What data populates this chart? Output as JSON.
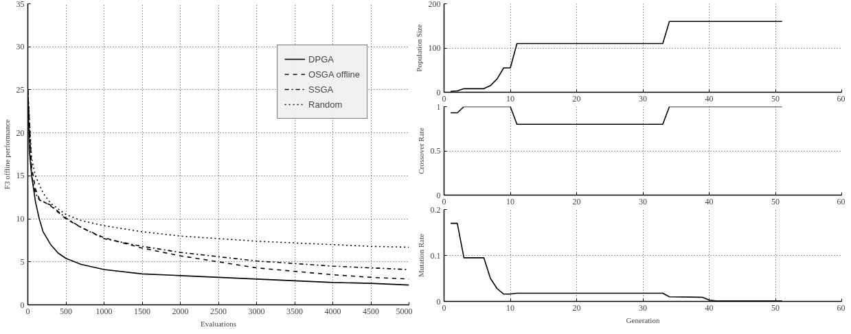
{
  "chart_data": [
    {
      "type": "line",
      "xlabel": "Evaluations",
      "ylabel": "F3 offline performance",
      "xlim": [
        0,
        5000
      ],
      "ylim": [
        0,
        35
      ],
      "xticks": [
        0,
        500,
        1000,
        1500,
        2000,
        2500,
        3000,
        3500,
        4000,
        4500,
        5000
      ],
      "yticks": [
        0,
        5,
        10,
        15,
        20,
        25,
        30,
        35
      ],
      "grid": true,
      "legend": "top right",
      "series": [
        {
          "name": "DPGA",
          "color": "#000000",
          "line_style": "solid",
          "x": [
            0,
            20,
            50,
            100,
            150,
            200,
            300,
            400,
            500,
            700,
            1000,
            1500,
            2000,
            2500,
            3000,
            3500,
            4000,
            4500,
            5000
          ],
          "values": [
            25,
            18,
            15,
            12,
            10,
            8.5,
            7,
            6,
            5.4,
            4.7,
            4.1,
            3.6,
            3.4,
            3.2,
            3.0,
            2.8,
            2.6,
            2.5,
            2.3
          ]
        },
        {
          "name": "OSGA offline",
          "color": "#000000",
          "line_style": "dashed",
          "x": [
            0,
            50,
            100,
            150,
            300,
            500,
            700,
            1000,
            1500,
            2000,
            2500,
            3000,
            3500,
            4000,
            4500,
            5000
          ],
          "values": [
            25,
            16,
            13.5,
            12.3,
            11.5,
            10,
            9,
            7.8,
            6.6,
            5.7,
            5.0,
            4.3,
            3.9,
            3.5,
            3.2,
            3.0
          ]
        },
        {
          "name": "SSGA",
          "color": "#000000",
          "line_style": "dashdot",
          "x": [
            0,
            50,
            100,
            150,
            300,
            500,
            700,
            1000,
            1500,
            2000,
            2500,
            3000,
            3500,
            4000,
            4500,
            5000
          ],
          "values": [
            25,
            15,
            13,
            12.2,
            11.6,
            10.1,
            9,
            7.7,
            6.8,
            6.1,
            5.6,
            5.1,
            4.8,
            4.5,
            4.3,
            4.1
          ]
        },
        {
          "name": "Random",
          "color": "#000000",
          "line_style": "dotted",
          "x": [
            0,
            50,
            100,
            200,
            300,
            500,
            700,
            1000,
            1500,
            2000,
            2500,
            3000,
            3500,
            4000,
            4500,
            5000
          ],
          "values": [
            25,
            17,
            15,
            13,
            11.8,
            10.5,
            9.8,
            9.2,
            8.5,
            8.0,
            7.7,
            7.4,
            7.2,
            7.0,
            6.8,
            6.7
          ]
        }
      ]
    },
    {
      "type": "line",
      "ylabel": "Population Size",
      "xlim": [
        0,
        60
      ],
      "ylim": [
        0,
        200
      ],
      "xticks": [
        0,
        10,
        20,
        30,
        40,
        50,
        60
      ],
      "yticks": [
        0,
        100,
        200
      ],
      "grid": true,
      "series": [
        {
          "color": "#000000",
          "x": [
            1,
            2,
            3,
            4,
            5,
            6,
            7,
            8,
            9,
            10,
            11,
            20,
            33,
            34,
            40,
            51
          ],
          "values": [
            2,
            3,
            8,
            8,
            8,
            8,
            15,
            30,
            55,
            55,
            110,
            110,
            110,
            160,
            160,
            160
          ]
        }
      ]
    },
    {
      "type": "line",
      "ylabel": "Crossover Rate",
      "xlim": [
        0,
        60
      ],
      "ylim": [
        0,
        1
      ],
      "xticks": [
        0,
        10,
        20,
        30,
        40,
        50,
        60
      ],
      "yticks": [
        0,
        0.5,
        1
      ],
      "grid": true,
      "series": [
        {
          "color": "#000000",
          "x": [
            1,
            2,
            3,
            10,
            11,
            20,
            33,
            34,
            40,
            51
          ],
          "values": [
            0.93,
            0.93,
            1,
            1,
            0.8,
            0.8,
            0.8,
            1,
            1,
            1
          ]
        }
      ]
    },
    {
      "type": "line",
      "xlabel": "Generation",
      "ylabel": "Mutation Rate",
      "xlim": [
        0,
        60
      ],
      "ylim": [
        0,
        0.2
      ],
      "xticks": [
        0,
        10,
        20,
        30,
        40,
        50,
        60
      ],
      "yticks": [
        0,
        0.1,
        0.2
      ],
      "grid": true,
      "series": [
        {
          "color": "#000000",
          "x": [
            1,
            2,
            3,
            4,
            5,
            6,
            7,
            8,
            9,
            10,
            11,
            20,
            33,
            34,
            39,
            40,
            41,
            51
          ],
          "values": [
            0.17,
            0.17,
            0.095,
            0.095,
            0.095,
            0.095,
            0.05,
            0.028,
            0.016,
            0.016,
            0.018,
            0.018,
            0.018,
            0.01,
            0.009,
            0.003,
            0.001,
            0.001
          ]
        }
      ]
    }
  ]
}
